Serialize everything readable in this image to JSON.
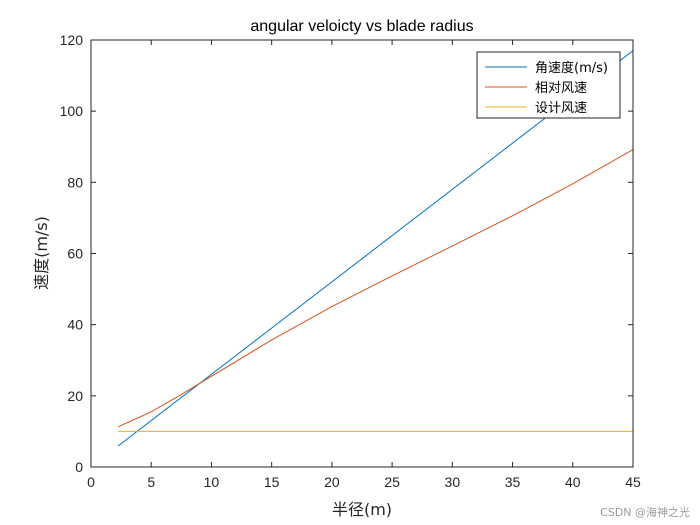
{
  "chart_data": {
    "type": "line",
    "title": "angular veloicty vs blade radius",
    "xlabel": "半径(m)",
    "ylabel": "速度(m/s)",
    "xlim": [
      0,
      45
    ],
    "ylim": [
      0,
      120
    ],
    "xticks": [
      0,
      5,
      10,
      15,
      20,
      25,
      30,
      35,
      40,
      45
    ],
    "yticks": [
      0,
      20,
      40,
      60,
      80,
      100,
      120
    ],
    "grid": false,
    "legend_position": "top-right",
    "series": [
      {
        "name": "角速度(m/s)",
        "color": "#0072BD",
        "x": [
          2.25,
          45
        ],
        "y": [
          5.9,
          117
        ]
      },
      {
        "name": "相对风速",
        "color": "#D95319",
        "x": [
          2.25,
          5,
          7.5,
          10,
          15,
          20,
          25,
          30,
          35,
          40,
          45
        ],
        "y": [
          11.3,
          15.5,
          20.4,
          25.5,
          35.7,
          45.1,
          53.7,
          62.1,
          70.6,
          79.6,
          89.2
        ]
      },
      {
        "name": "设计风速",
        "color": "#EDB120",
        "x": [
          2.25,
          45
        ],
        "y": [
          10,
          10
        ]
      }
    ]
  },
  "watermark": "CSDN @海神之光"
}
